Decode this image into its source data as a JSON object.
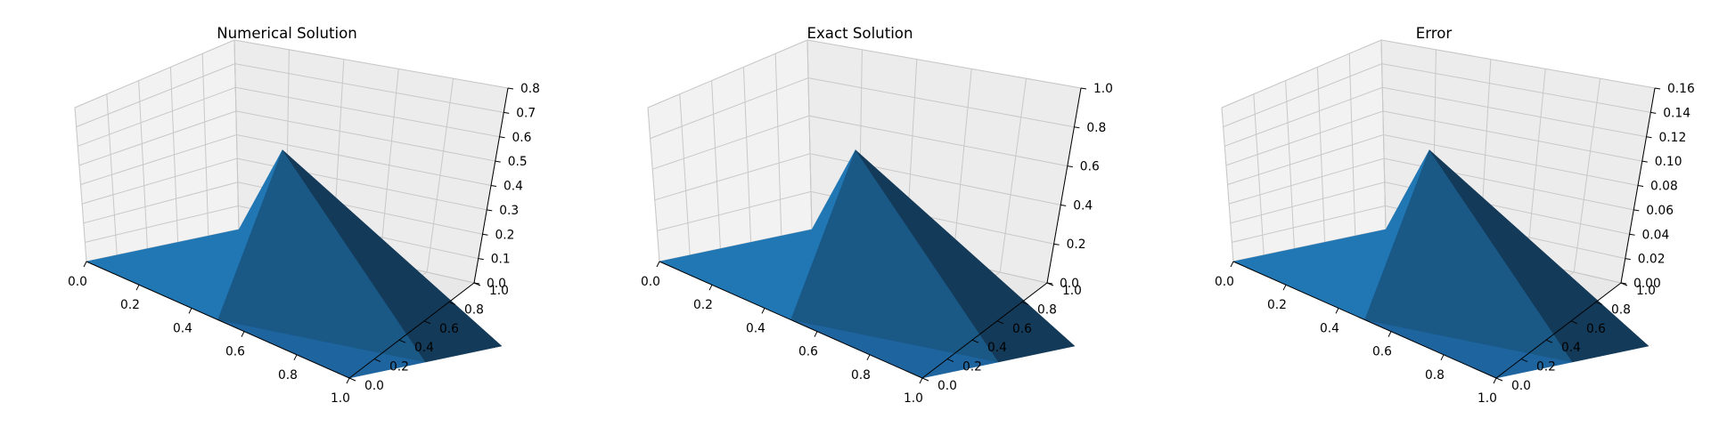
{
  "chart_data": [
    {
      "type": "surface3d",
      "title": "Numerical Solution",
      "x": [
        0,
        0.5,
        1
      ],
      "y": [
        0,
        0.5,
        1
      ],
      "z": [
        [
          0,
          0,
          0
        ],
        [
          0,
          0.8,
          0
        ],
        [
          0,
          0,
          0
        ]
      ],
      "xticks": [
        "0.0",
        "0.2",
        "0.4",
        "0.6",
        "0.8",
        "1.0"
      ],
      "yticks": [
        "0.0",
        "0.2",
        "0.4",
        "0.6",
        "0.8",
        "1.0"
      ],
      "zticks": [
        "0.0",
        "0.1",
        "0.2",
        "0.3",
        "0.4",
        "0.5",
        "0.6",
        "0.7",
        "0.8"
      ],
      "xlim": [
        0,
        1
      ],
      "ylim": [
        0,
        1
      ],
      "zlim": [
        0,
        0.8
      ],
      "grid": true,
      "colors": {
        "face_light": "#2077b4",
        "face_mid": "#1a5886",
        "face_dark": "#143a59",
        "face_front": "#1e65a0"
      }
    },
    {
      "type": "surface3d",
      "title": "Exact Solution",
      "x": [
        0,
        0.5,
        1
      ],
      "y": [
        0,
        0.5,
        1
      ],
      "z": [
        [
          0,
          0,
          0
        ],
        [
          0,
          1.0,
          0
        ],
        [
          0,
          0,
          0
        ]
      ],
      "xticks": [
        "0.0",
        "0.2",
        "0.4",
        "0.6",
        "0.8",
        "1.0"
      ],
      "yticks": [
        "0.0",
        "0.2",
        "0.4",
        "0.6",
        "0.8",
        "1.0"
      ],
      "zticks": [
        "0.0",
        "0.2",
        "0.4",
        "0.6",
        "0.8",
        "1.0"
      ],
      "xlim": [
        0,
        1
      ],
      "ylim": [
        0,
        1
      ],
      "zlim": [
        0,
        1.0
      ],
      "grid": true,
      "colors": {
        "face_light": "#2077b4",
        "face_mid": "#1a5886",
        "face_dark": "#143a59",
        "face_front": "#1e65a0"
      }
    },
    {
      "type": "surface3d",
      "title": "Error",
      "x": [
        0,
        0.5,
        1
      ],
      "y": [
        0,
        0.5,
        1
      ],
      "z": [
        [
          0,
          0,
          0
        ],
        [
          0,
          0.16,
          0
        ],
        [
          0,
          0,
          0
        ]
      ],
      "xticks": [
        "0.0",
        "0.2",
        "0.4",
        "0.6",
        "0.8",
        "1.0"
      ],
      "yticks": [
        "0.0",
        "0.2",
        "0.4",
        "0.6",
        "0.8",
        "1.0"
      ],
      "zticks": [
        "0.00",
        "0.02",
        "0.04",
        "0.06",
        "0.08",
        "0.10",
        "0.12",
        "0.14",
        "0.16"
      ],
      "xlim": [
        0,
        1
      ],
      "ylim": [
        0,
        1
      ],
      "zlim": [
        0,
        0.16
      ],
      "grid": true,
      "colors": {
        "face_light": "#2077b4",
        "face_mid": "#1a5886",
        "face_dark": "#143a59",
        "face_front": "#1e65a0"
      }
    }
  ]
}
